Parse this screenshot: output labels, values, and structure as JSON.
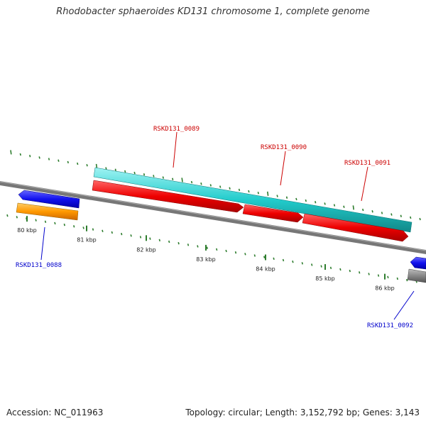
{
  "title": "Rhodobacter sphaeroides KD131 chromosome 1, complete genome",
  "footer": {
    "accession": "Accession: NC_011963",
    "stats": "Topology: circular; Length: 3,152,792 bp; Genes: 3,143"
  },
  "ticks": [
    {
      "kb": 80,
      "label": "80 kbp"
    },
    {
      "kb": 81,
      "label": "81 kbp"
    },
    {
      "kb": 82,
      "label": "82 kbp"
    },
    {
      "kb": 83,
      "label": "83 kbp"
    },
    {
      "kb": 84,
      "label": "84 kbp"
    },
    {
      "kb": 85,
      "label": "85 kbp"
    },
    {
      "kb": 86,
      "label": "86 kbp"
    }
  ],
  "genes": [
    {
      "id": "RSKD131_0088",
      "color": "#0000cc"
    },
    {
      "id": "RSKD131_0089",
      "color": "#cc0000"
    },
    {
      "id": "RSKD131_0090",
      "color": "#cc0000"
    },
    {
      "id": "RSKD131_0091",
      "color": "#cc0000"
    },
    {
      "id": "RSKD131_0092",
      "color": "#0000cc"
    }
  ]
}
